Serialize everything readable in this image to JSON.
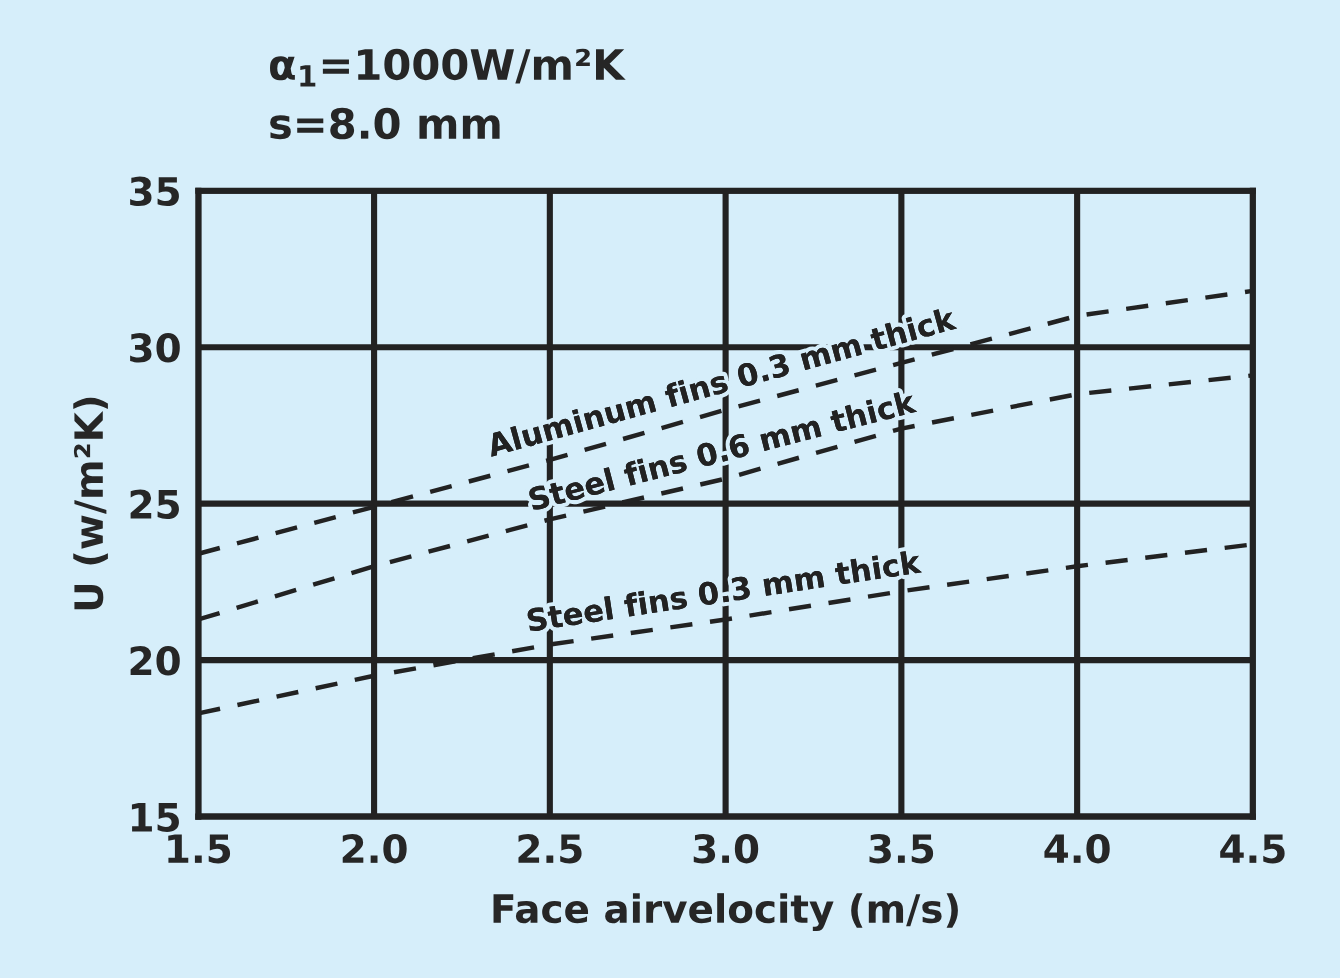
{
  "chart_data": {
    "type": "line",
    "annotations": [
      "α$_{1}$=1000W/m²K",
      "s=8.0 mm"
    ],
    "xlabel": "Face airvelocity (m/s)",
    "ylabel": "U (w/m²K)",
    "x": [
      1.5,
      2.0,
      2.5,
      3.0,
      3.5,
      4.0,
      4.5
    ],
    "series": [
      {
        "name": "Aluminum fins 0.3 mm thick",
        "color": "#222222",
        "values": [
          23.4,
          24.9,
          26.4,
          28.0,
          29.5,
          31.0,
          31.8
        ]
      },
      {
        "name": "Steel fins 0.6 mm thick",
        "color": "#222222",
        "values": [
          21.3,
          23.0,
          24.5,
          25.8,
          27.4,
          28.5,
          29.1
        ]
      },
      {
        "name": "Steel fins 0.3 mm thick",
        "color": "#222222",
        "values": [
          18.3,
          19.5,
          20.5,
          21.3,
          22.2,
          23.0,
          23.7
        ]
      }
    ],
    "xlim": [
      1.5,
      4.5
    ],
    "xticks": [
      1.5,
      {
        "value": 2,
        "label": "2.0"
      },
      2.5,
      {
        "value": 3,
        "label": "3.0"
      },
      3.5,
      {
        "value": 4,
        "label": "4.0"
      },
      4.5
    ],
    "ylim": [
      15,
      35
    ],
    "yticks": [
      15,
      20,
      25,
      30,
      35
    ],
    "grid": true,
    "line_style": "dashed",
    "marker": "none",
    "legend": false
  }
}
